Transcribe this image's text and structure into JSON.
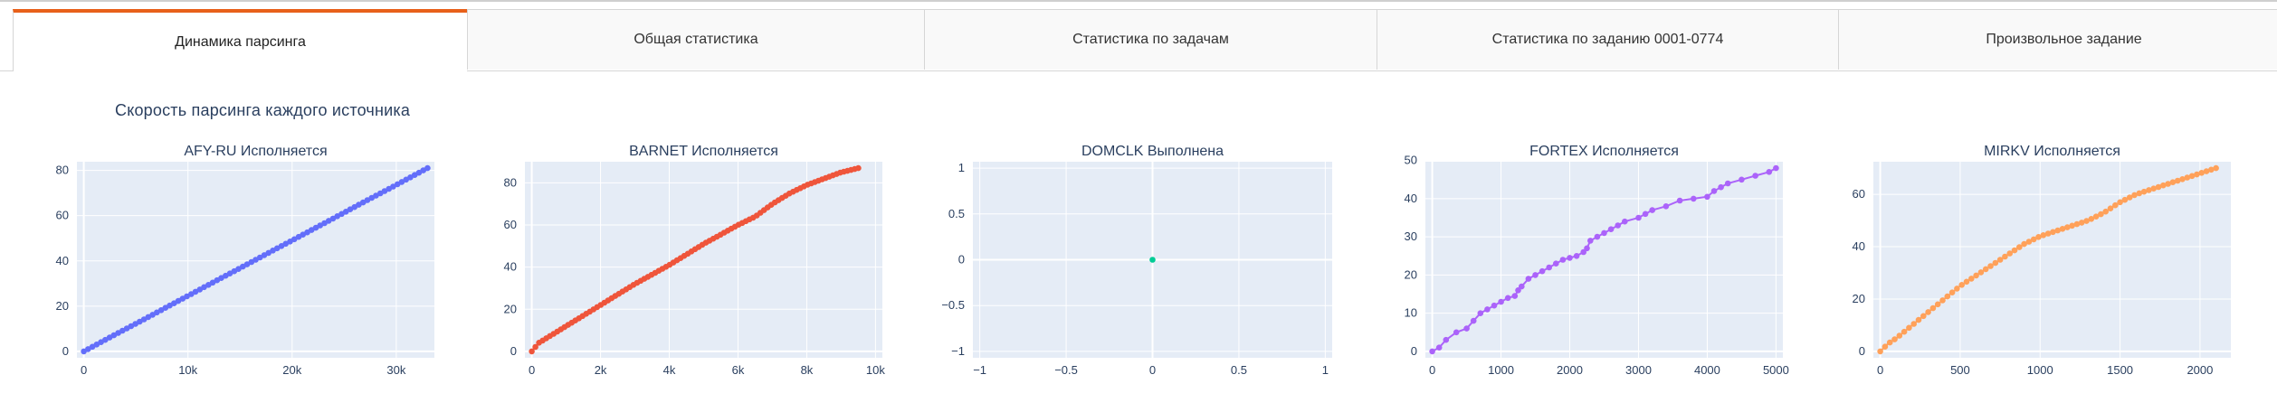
{
  "tabs": [
    {
      "label": "Динамика парсинга",
      "active": true
    },
    {
      "label": "Общая статистика",
      "active": false
    },
    {
      "label": "Статистика по задачам",
      "active": false
    },
    {
      "label": "Статистика по заданию 0001-0774",
      "active": false
    },
    {
      "label": "Произвольное задание",
      "active": false
    }
  ],
  "section_title": "Скорость парсинга каждого источника",
  "colors": {
    "tab_accent": "#e8601a",
    "plot_bg": "#e5ecf6",
    "grid": "#ffffff",
    "text": "#2a3f5f"
  },
  "chart_data": [
    {
      "type": "line",
      "title": "AFY-RU Исполняется",
      "color": "#636efa",
      "xlim": [
        0,
        33000
      ],
      "ylim": [
        0,
        81
      ],
      "xticks": [
        0,
        10000,
        20000,
        30000
      ],
      "xticklabels": [
        "0",
        "10k",
        "20k",
        "30k"
      ],
      "yticks": [
        0,
        20,
        40,
        60,
        80
      ],
      "yticklabels": [
        "0",
        "20",
        "40",
        "60",
        "80"
      ],
      "grid": true,
      "x": [
        0,
        3000,
        6000,
        9000,
        12000,
        15000,
        18000,
        21000,
        24000,
        27000,
        30000,
        33000
      ],
      "y": [
        0,
        7.4,
        14.7,
        22.1,
        29.5,
        36.8,
        44.2,
        51.5,
        58.9,
        66.3,
        73.6,
        81
      ],
      "markers": 80
    },
    {
      "type": "line",
      "title": "BARNET Исполняется",
      "color": "#ef553b",
      "xlim": [
        0,
        10000
      ],
      "ylim": [
        0,
        87
      ],
      "xticks": [
        0,
        2000,
        4000,
        6000,
        8000,
        10000
      ],
      "xticklabels": [
        "0",
        "2k",
        "4k",
        "6k",
        "8k",
        "10k"
      ],
      "yticks": [
        0,
        20,
        40,
        60,
        80
      ],
      "yticklabels": [
        "0",
        "20",
        "40",
        "60",
        "80"
      ],
      "grid": true,
      "x": [
        0,
        200,
        500,
        1000,
        1500,
        2000,
        3000,
        4000,
        5000,
        6000,
        6500,
        7000,
        7500,
        8000,
        8500,
        9000,
        9500
      ],
      "y": [
        0,
        4,
        7,
        12,
        17,
        22,
        32,
        41,
        51,
        60,
        64,
        70,
        75,
        79,
        82,
        85,
        87
      ],
      "markers": 90
    },
    {
      "type": "scatter",
      "title": "DOMCLK Выполнена",
      "color": "#00cc96",
      "xlim": [
        -1,
        1
      ],
      "ylim": [
        -1,
        1
      ],
      "xticks": [
        -1,
        -0.5,
        0,
        0.5,
        1
      ],
      "xticklabels": [
        "−1",
        "−0.5",
        "0",
        "0.5",
        "1"
      ],
      "yticks": [
        -1,
        -0.5,
        0,
        0.5,
        1
      ],
      "yticklabels": [
        "−1",
        "−0.5",
        "0",
        "0.5",
        "1"
      ],
      "grid": true,
      "x": [
        0
      ],
      "y": [
        0
      ],
      "markers": 0
    },
    {
      "type": "line",
      "title": "FORTEX Исполняется",
      "color": "#ab63fa",
      "xlim": [
        0,
        5000
      ],
      "ylim": [
        0,
        48
      ],
      "xticks": [
        0,
        1000,
        2000,
        3000,
        4000,
        5000
      ],
      "xticklabels": [
        "0",
        "1000",
        "2000",
        "3000",
        "4000",
        "5000"
      ],
      "yticks": [
        0,
        10,
        20,
        30,
        40,
        50
      ],
      "yticklabels": [
        "0",
        "10",
        "20",
        "30",
        "40",
        "50"
      ],
      "grid": true,
      "x": [
        0,
        100,
        200,
        350,
        500,
        600,
        700,
        800,
        900,
        1000,
        1100,
        1200,
        1250,
        1300,
        1400,
        1500,
        1600,
        1700,
        1800,
        1900,
        2000,
        2100,
        2200,
        2250,
        2300,
        2400,
        2500,
        2600,
        2700,
        2800,
        3000,
        3100,
        3200,
        3400,
        3600,
        3800,
        4000,
        4100,
        4200,
        4300,
        4500,
        4700,
        4900,
        5000
      ],
      "y": [
        0,
        1,
        3,
        5,
        6,
        8,
        10,
        11,
        12,
        13,
        14,
        14.5,
        16,
        17,
        19,
        20,
        21,
        22,
        23,
        24,
        24.5,
        25,
        26,
        27,
        29,
        30,
        31,
        32,
        33,
        34,
        35,
        36,
        37,
        38,
        39.5,
        40,
        40.5,
        42,
        43,
        44,
        45,
        46,
        47,
        48
      ],
      "markers": 0
    },
    {
      "type": "line",
      "title": "MIRKV Исполняется",
      "color": "#ffa15a",
      "xlim": [
        0,
        2150
      ],
      "ylim": [
        0,
        70
      ],
      "xticks": [
        0,
        500,
        1000,
        1500,
        2000
      ],
      "xticklabels": [
        "0",
        "500",
        "1000",
        "1500",
        "2000"
      ],
      "yticks": [
        0,
        20,
        40,
        60
      ],
      "yticklabels": [
        "0",
        "20",
        "40",
        "60"
      ],
      "grid": true,
      "x": [
        0,
        50,
        100,
        200,
        300,
        400,
        500,
        600,
        700,
        800,
        850,
        900,
        1000,
        1100,
        1200,
        1300,
        1400,
        1500,
        1600,
        1700,
        1800,
        1900,
        2000,
        2100
      ],
      "y": [
        0,
        3,
        5,
        10,
        15,
        20,
        25,
        29,
        33,
        37,
        39,
        41,
        44,
        46,
        48,
        50,
        53,
        57,
        60,
        62,
        64,
        66,
        68,
        70
      ],
      "markers": 70
    }
  ]
}
